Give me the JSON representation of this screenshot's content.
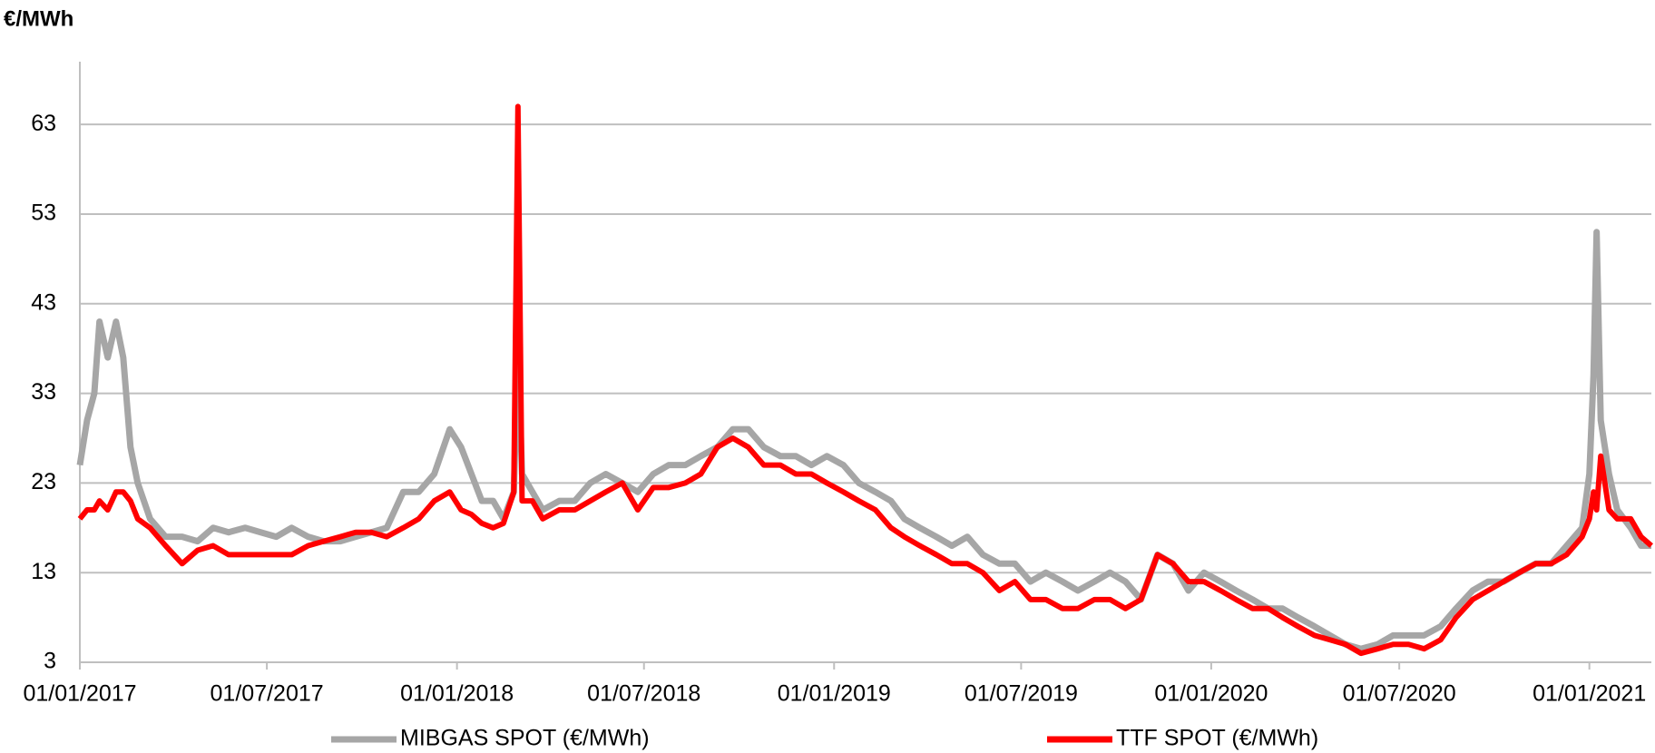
{
  "chart_data": {
    "type": "line",
    "y_title": "€/MWh",
    "x": [
      "01/01/2017",
      "08/01/2017",
      "15/01/2017",
      "20/01/2017",
      "28/01/2017",
      "05/02/2017",
      "12/02/2017",
      "19/02/2017",
      "26/02/2017",
      "10/03/2017",
      "25/03/2017",
      "10/04/2017",
      "25/04/2017",
      "10/05/2017",
      "25/05/2017",
      "10/06/2017",
      "25/06/2017",
      "10/07/2017",
      "25/07/2017",
      "10/08/2017",
      "25/08/2017",
      "10/09/2017",
      "25/09/2017",
      "10/10/2017",
      "25/10/2017",
      "10/11/2017",
      "25/11/2017",
      "10/12/2017",
      "25/12/2017",
      "05/01/2018",
      "15/01/2018",
      "25/01/2018",
      "05/02/2018",
      "15/02/2018",
      "25/02/2018",
      "01/03/2018",
      "05/03/2018",
      "15/03/2018",
      "25/03/2018",
      "10/04/2018",
      "25/04/2018",
      "10/05/2018",
      "25/05/2018",
      "10/06/2018",
      "25/06/2018",
      "10/07/2018",
      "25/07/2018",
      "10/08/2018",
      "25/08/2018",
      "10/09/2018",
      "25/09/2018",
      "10/10/2018",
      "25/10/2018",
      "10/11/2018",
      "25/11/2018",
      "10/12/2018",
      "25/12/2018",
      "10/01/2019",
      "25/01/2019",
      "10/02/2019",
      "25/02/2019",
      "10/03/2019",
      "25/03/2019",
      "10/04/2019",
      "25/04/2019",
      "10/05/2019",
      "25/05/2019",
      "10/06/2019",
      "25/06/2019",
      "10/07/2019",
      "25/07/2019",
      "10/08/2019",
      "25/08/2019",
      "10/09/2019",
      "25/09/2019",
      "10/10/2019",
      "25/10/2019",
      "10/11/2019",
      "25/11/2019",
      "10/12/2019",
      "25/12/2019",
      "10/01/2020",
      "25/01/2020",
      "10/02/2020",
      "25/02/2020",
      "10/03/2020",
      "25/03/2020",
      "10/04/2020",
      "25/04/2020",
      "10/05/2020",
      "25/05/2020",
      "10/06/2020",
      "25/06/2020",
      "10/07/2020",
      "25/07/2020",
      "10/08/2020",
      "25/08/2020",
      "10/09/2020",
      "25/09/2020",
      "10/10/2020",
      "25/10/2020",
      "10/11/2020",
      "25/11/2020",
      "10/12/2020",
      "25/12/2020",
      "01/01/2021",
      "05/01/2021",
      "08/01/2021",
      "12/01/2021",
      "20/01/2021",
      "28/01/2021",
      "10/02/2021",
      "20/02/2021",
      "02/03/2021"
    ],
    "series": [
      {
        "name": "MIBGAS SPOT (€/MWh)",
        "color": "#a6a6a6",
        "values": [
          25,
          30,
          33,
          41,
          37,
          41,
          37,
          27,
          23,
          19,
          17,
          17,
          16.5,
          18,
          17.5,
          18,
          17.5,
          17,
          18,
          17,
          16.5,
          16.5,
          17,
          17.5,
          18,
          22,
          22,
          24,
          29,
          27,
          24,
          21,
          21,
          19,
          22,
          38,
          24,
          22,
          20,
          21,
          21,
          23,
          24,
          23,
          22,
          24,
          25,
          25,
          26,
          27,
          29,
          29,
          27,
          26,
          26,
          25,
          26,
          25,
          23,
          22,
          21,
          19,
          18,
          17,
          16,
          17,
          15,
          14,
          14,
          12,
          13,
          12,
          11,
          12,
          13,
          12,
          10,
          15,
          14,
          11,
          13,
          12,
          11,
          10,
          9,
          9,
          8,
          7,
          6,
          5,
          4.5,
          5,
          6,
          6,
          6,
          7,
          9,
          11,
          12,
          12,
          13,
          14,
          14,
          16,
          18,
          24,
          35,
          51,
          30,
          24,
          20,
          18,
          16,
          16
        ]
      },
      {
        "name": "TTF SPOT (€/MWh)",
        "color": "#ff0000",
        "values": [
          19,
          20,
          20,
          21,
          20,
          22,
          22,
          21,
          19,
          18,
          16,
          14,
          15.5,
          16,
          15,
          15,
          15,
          15,
          15,
          16,
          16.5,
          17,
          17.5,
          17.5,
          17,
          18,
          19,
          21,
          22,
          20,
          19.5,
          18.5,
          18,
          18.5,
          22,
          65,
          21,
          21,
          19,
          20,
          20,
          21,
          22,
          23,
          20,
          22.5,
          22.5,
          23,
          24,
          27,
          28,
          27,
          25,
          25,
          24,
          24,
          23,
          22,
          21,
          20,
          18,
          17,
          16,
          15,
          14,
          14,
          13,
          11,
          12,
          10,
          10,
          9,
          9,
          10,
          10,
          9,
          10,
          15,
          14,
          12,
          12,
          11,
          10,
          9,
          9,
          8,
          7,
          6,
          5.5,
          5,
          4,
          4.5,
          5,
          5,
          4.5,
          5.5,
          8,
          10,
          11,
          12,
          13,
          14,
          14,
          15,
          17,
          19,
          22,
          20,
          26,
          20,
          19,
          19,
          17,
          16
        ]
      }
    ],
    "xlim": [
      "01/01/2017",
      "02/03/2021"
    ],
    "xticks": [
      "01/01/2017",
      "01/07/2017",
      "01/01/2018",
      "01/07/2018",
      "01/01/2019",
      "01/07/2019",
      "01/01/2020",
      "01/07/2020",
      "01/01/2021"
    ],
    "ylim": [
      3,
      70
    ],
    "yticks": [
      3,
      13,
      23,
      33,
      43,
      53,
      63
    ],
    "grid": true
  }
}
